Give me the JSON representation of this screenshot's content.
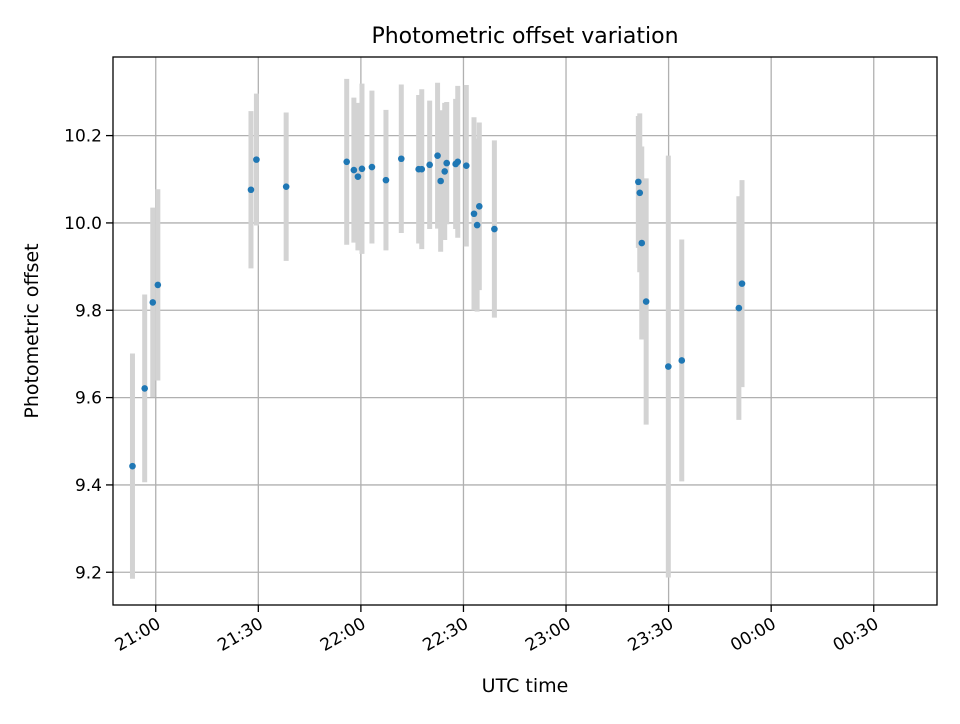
{
  "chart_data": {
    "type": "scatter",
    "title": "Photometric offset variation",
    "xlabel": "UTC time",
    "ylabel": "Photometric offset",
    "x_type": "time",
    "x_ticks": [
      "2020-01-01T21:00",
      "2020-01-01T21:30",
      "2020-01-01T22:00",
      "2020-01-01T22:30",
      "2020-01-01T23:00",
      "2020-01-01T23:30",
      "2020-01-02T00:00",
      "2020-01-02T00:30"
    ],
    "x_tick_labels": [
      "21:00",
      "21:30",
      "22:00",
      "22:30",
      "23:00",
      "23:30",
      "00:00",
      "00:30"
    ],
    "xlim": [
      "2020-01-01T20:47:30",
      "2020-01-02T00:48:30"
    ],
    "y_ticks": [
      9.2,
      9.4,
      9.6,
      9.8,
      10.0,
      10.2
    ],
    "y_tick_labels": [
      "9.2",
      "9.4",
      "9.6",
      "9.8",
      "10.0",
      "10.2"
    ],
    "ylim": [
      9.125,
      10.38
    ],
    "grid": true,
    "colors": {
      "points": "#1f77b4",
      "errorbars": "#d3d3d3",
      "grid": "#b0b0b0"
    },
    "points": [
      {
        "x": "2020-01-01T20:53:12",
        "y": 9.443,
        "yerr": 0.258
      },
      {
        "x": "2020-01-01T20:56:46",
        "y": 9.621,
        "yerr": 0.215
      },
      {
        "x": "2020-01-01T20:59:08",
        "y": 9.818,
        "yerr": 0.217
      },
      {
        "x": "2020-01-01T21:00:37",
        "y": 9.858,
        "yerr": 0.219
      },
      {
        "x": "2020-01-01T21:27:51",
        "y": 10.076,
        "yerr": 0.18
      },
      {
        "x": "2020-01-01T21:29:27",
        "y": 10.145,
        "yerr": 0.151
      },
      {
        "x": "2020-01-01T21:38:09",
        "y": 10.083,
        "yerr": 0.17
      },
      {
        "x": "2020-01-01T21:55:51",
        "y": 10.14,
        "yerr": 0.19
      },
      {
        "x": "2020-01-01T21:57:57",
        "y": 10.121,
        "yerr": 0.166
      },
      {
        "x": "2020-01-01T21:59:08",
        "y": 10.106,
        "yerr": 0.169
      },
      {
        "x": "2020-01-01T22:00:19",
        "y": 10.124,
        "yerr": 0.195
      },
      {
        "x": "2020-01-01T22:03:14",
        "y": 10.128,
        "yerr": 0.175
      },
      {
        "x": "2020-01-01T22:07:20",
        "y": 10.098,
        "yerr": 0.161
      },
      {
        "x": "2020-01-01T22:11:49",
        "y": 10.147,
        "yerr": 0.17
      },
      {
        "x": "2020-01-01T22:16:54",
        "y": 10.123,
        "yerr": 0.17
      },
      {
        "x": "2020-01-01T22:17:48",
        "y": 10.123,
        "yerr": 0.183
      },
      {
        "x": "2020-01-01T22:20:07",
        "y": 10.133,
        "yerr": 0.147
      },
      {
        "x": "2020-01-01T22:22:26",
        "y": 10.154,
        "yerr": 0.167
      },
      {
        "x": "2020-01-01T22:23:20",
        "y": 10.096,
        "yerr": 0.162
      },
      {
        "x": "2020-01-01T22:24:31",
        "y": 10.118,
        "yerr": 0.157
      },
      {
        "x": "2020-01-01T22:25:06",
        "y": 10.137,
        "yerr": 0.14
      },
      {
        "x": "2020-01-01T22:27:43",
        "y": 10.135,
        "yerr": 0.149
      },
      {
        "x": "2020-01-01T22:28:20",
        "y": 10.14,
        "yerr": 0.174
      },
      {
        "x": "2020-01-01T22:30:50",
        "y": 10.131,
        "yerr": 0.185
      },
      {
        "x": "2020-01-01T22:33:05",
        "y": 10.021,
        "yerr": 0.221
      },
      {
        "x": "2020-01-01T22:34:00",
        "y": 9.995,
        "yerr": 0.198
      },
      {
        "x": "2020-01-01T22:34:38",
        "y": 10.038,
        "yerr": 0.192
      },
      {
        "x": "2020-01-01T22:39:03",
        "y": 9.986,
        "yerr": 0.203
      },
      {
        "x": "2020-01-01T23:21:09",
        "y": 10.094,
        "yerr": 0.151
      },
      {
        "x": "2020-01-01T23:21:34",
        "y": 10.069,
        "yerr": 0.182
      },
      {
        "x": "2020-01-01T23:22:09",
        "y": 9.954,
        "yerr": 0.221
      },
      {
        "x": "2020-01-01T23:23:26",
        "y": 9.82,
        "yerr": 0.282
      },
      {
        "x": "2020-01-01T23:29:55",
        "y": 9.671,
        "yerr": 0.483
      },
      {
        "x": "2020-01-01T23:33:51",
        "y": 9.685,
        "yerr": 0.277
      },
      {
        "x": "2020-01-01T23:50:33",
        "y": 9.805,
        "yerr": 0.256
      },
      {
        "x": "2020-01-01T23:51:28",
        "y": 9.861,
        "yerr": 0.237
      }
    ]
  }
}
